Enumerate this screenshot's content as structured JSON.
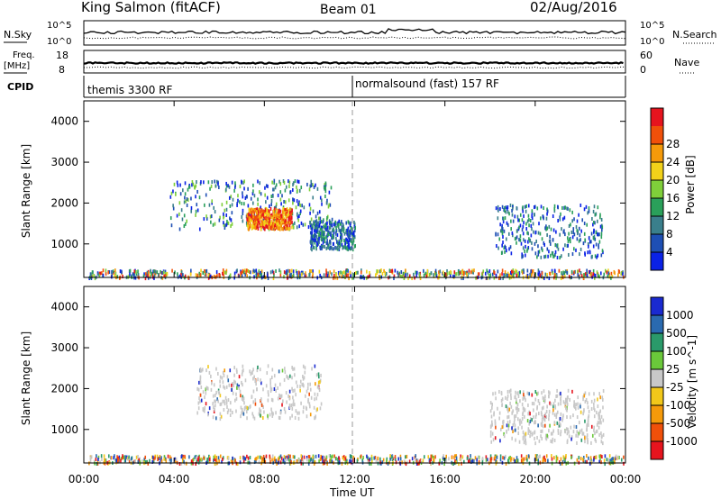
{
  "header": {
    "station": "King Salmon (fitACF)",
    "beam": "Beam 01",
    "date": "02/Aug/2016"
  },
  "side_labels": {
    "nsky": "N.Sky",
    "nsearch": "N.Search",
    "freq_line1": "Freq.",
    "freq_line2": "[MHz]",
    "nave": "Nave",
    "cpid": "CPID",
    "nsky_top": "10^5",
    "nsky_bottom": "10^0",
    "nsearch_top": "10^5",
    "nsearch_bottom": "10^0",
    "freq_top": "18",
    "freq_bottom": "8",
    "nave_top": "60",
    "nave_bottom": "0"
  },
  "cpid_segments": [
    {
      "label": "themis 3300 RF",
      "start_hour": 0
    },
    {
      "label": "normalsound (fast) 157 RF",
      "start_hour": 12
    }
  ],
  "chart_data": [
    {
      "type": "heatmap",
      "name": "power",
      "ylabel": "Slant Range [km]",
      "xlabel": "Time UT",
      "xlim": [
        0,
        24
      ],
      "ylim": [
        180,
        4500
      ],
      "x_ticks": [
        "00:00",
        "04:00",
        "08:00",
        "12:00",
        "16:00",
        "20:00",
        "00:00"
      ],
      "y_ticks": [
        1000,
        2000,
        3000,
        4000
      ],
      "colorbar": {
        "label": "Power [dB]",
        "ticks": [
          "4",
          "8",
          "12",
          "16",
          "20",
          "24",
          "28"
        ],
        "colors": [
          "#0a22e6",
          "#1e4fb4",
          "#3a7f8c",
          "#2aa05a",
          "#7fcf3a",
          "#f2d21a",
          "#f59a0a",
          "#f0500a",
          "#e6141e"
        ]
      },
      "features": [
        {
          "time": [
            0.2,
            23.9
          ],
          "range": [
            200,
            400
          ],
          "value_db": [
            4,
            30
          ],
          "note": "ground scatter band"
        },
        {
          "time": [
            3.8,
            11.0
          ],
          "range": [
            1400,
            2600
          ],
          "value_db": [
            4,
            30
          ]
        },
        {
          "time": [
            7.2,
            9.2
          ],
          "range": [
            1400,
            1900
          ],
          "value_db": [
            20,
            30
          ]
        },
        {
          "time": [
            10.0,
            12.0
          ],
          "range": [
            900,
            1600
          ],
          "value_db": [
            4,
            20
          ]
        },
        {
          "time": [
            18.2,
            23.0
          ],
          "range": [
            700,
            2000
          ],
          "value_db": [
            4,
            16
          ]
        }
      ]
    },
    {
      "type": "heatmap",
      "name": "velocity",
      "ylabel": "Slant Range [km]",
      "xlabel": "Time UT",
      "xlim": [
        0,
        24
      ],
      "ylim": [
        180,
        4500
      ],
      "x_ticks": [
        "00:00",
        "04:00",
        "08:00",
        "12:00",
        "16:00",
        "20:00",
        "00:00"
      ],
      "y_ticks": [
        1000,
        2000,
        3000,
        4000
      ],
      "colorbar": {
        "label": "Velocity [m s^-1]",
        "ticks": [
          "1000",
          "500",
          "100",
          "25",
          "-25",
          "-100",
          "-500",
          "-1000"
        ],
        "colors": [
          "#1a2ad0",
          "#2a6ab0",
          "#2a9a6a",
          "#6ac83a",
          "#c8c8c8",
          "#f2c81a",
          "#f59a0a",
          "#f0500a",
          "#e6141e"
        ]
      },
      "features": [
        {
          "time": [
            0.2,
            23.9
          ],
          "range": [
            200,
            400
          ],
          "value_ms": [
            -1000,
            1000
          ]
        },
        {
          "time": [
            5.0,
            10.5
          ],
          "range": [
            1300,
            2600
          ],
          "value_ms": [
            -25,
            25
          ]
        },
        {
          "time": [
            18.0,
            23.0
          ],
          "range": [
            700,
            2000
          ],
          "value_ms": [
            -25,
            25
          ]
        }
      ]
    }
  ]
}
